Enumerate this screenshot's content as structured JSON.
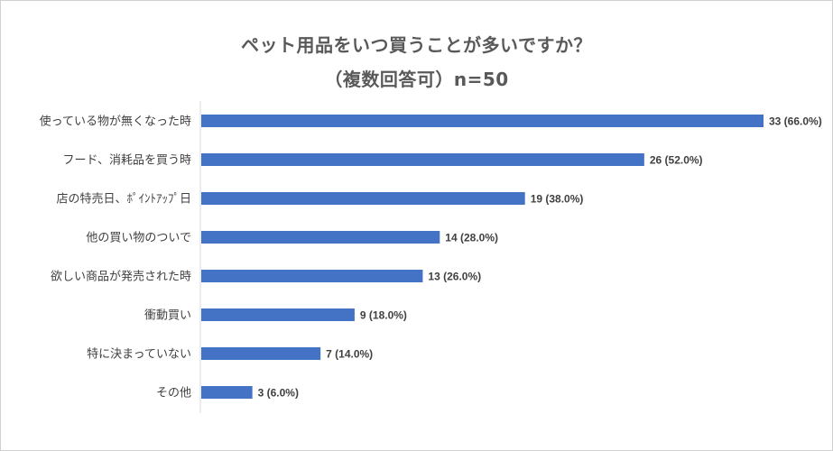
{
  "chart_data": {
    "type": "bar",
    "orientation": "horizontal",
    "title": "ペット用品をいつ買うことが多いですか？",
    "subtitle": "（複数回答可）n=50",
    "categories": [
      "使っている物が無くなった時",
      "フード、消耗品を買う時",
      "店の特売日、ﾎﾟｲﾝﾄｱｯﾌﾟ日",
      "他の買い物のついで",
      "欲しい商品が発売された時",
      "衝動買い",
      "特に決まっていない",
      "その他"
    ],
    "values": [
      33,
      26,
      19,
      14,
      13,
      9,
      7,
      3
    ],
    "data_labels": [
      "33 (66.0%)",
      "26 (52.0%)",
      "19 (38.0%)",
      "14 (28.0%)",
      "13 (26.0%)",
      "9 (18.0%)",
      "7 (14.0%)",
      "3 (6.0%)"
    ],
    "xlim": [
      0,
      33
    ],
    "grid": false,
    "legend": "none",
    "bar_color": "#4472c4"
  }
}
